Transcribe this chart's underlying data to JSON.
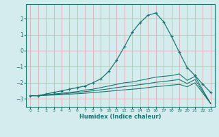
{
  "xlabel": "Humidex (Indice chaleur)",
  "bg_color": "#d5ecee",
  "grid_color": "#dbb0b0",
  "line_color": "#1a7570",
  "xlim": [
    -0.5,
    23.5
  ],
  "ylim": [
    -3.5,
    2.9
  ],
  "yticks": [
    -3,
    -2,
    -1,
    0,
    1,
    2
  ],
  "xticks": [
    0,
    1,
    2,
    3,
    4,
    5,
    6,
    7,
    8,
    9,
    10,
    11,
    12,
    13,
    14,
    15,
    16,
    17,
    18,
    19,
    20,
    21,
    22,
    23
  ],
  "line1_x": [
    0,
    1,
    2,
    3,
    4,
    5,
    6,
    7,
    8,
    9,
    10,
    11,
    12,
    13,
    14,
    15,
    16,
    17,
    18,
    19,
    20,
    21,
    22,
    23
  ],
  "line1_y": [
    -2.8,
    -2.8,
    -2.7,
    -2.6,
    -2.5,
    -2.4,
    -2.3,
    -2.2,
    -2.0,
    -1.75,
    -1.3,
    -0.6,
    0.25,
    1.15,
    1.75,
    2.2,
    2.35,
    1.8,
    0.9,
    -0.1,
    -1.05,
    -1.55,
    -2.1,
    -2.6
  ],
  "line2_x": [
    0,
    1,
    2,
    3,
    4,
    5,
    6,
    7,
    8,
    9,
    10,
    11,
    12,
    13,
    14,
    15,
    16,
    17,
    18,
    19,
    20,
    21,
    22,
    23
  ],
  "line2_y": [
    -2.8,
    -2.8,
    -2.75,
    -2.7,
    -2.65,
    -2.6,
    -2.55,
    -2.45,
    -2.4,
    -2.3,
    -2.2,
    -2.1,
    -2.0,
    -1.95,
    -1.85,
    -1.75,
    -1.65,
    -1.6,
    -1.55,
    -1.45,
    -1.85,
    -1.6,
    -2.45,
    -3.3
  ],
  "line3_x": [
    0,
    1,
    2,
    3,
    4,
    5,
    6,
    7,
    8,
    9,
    10,
    11,
    12,
    13,
    14,
    15,
    16,
    17,
    18,
    19,
    20,
    21,
    22,
    23
  ],
  "line3_y": [
    -2.8,
    -2.8,
    -2.77,
    -2.73,
    -2.7,
    -2.65,
    -2.6,
    -2.55,
    -2.5,
    -2.44,
    -2.38,
    -2.3,
    -2.24,
    -2.18,
    -2.12,
    -2.05,
    -1.97,
    -1.92,
    -1.86,
    -1.8,
    -2.05,
    -1.8,
    -2.55,
    -3.3
  ],
  "line4_x": [
    0,
    1,
    2,
    3,
    4,
    5,
    6,
    7,
    8,
    9,
    10,
    11,
    12,
    13,
    14,
    15,
    16,
    17,
    18,
    19,
    20,
    21,
    22,
    23
  ],
  "line4_y": [
    -2.8,
    -2.8,
    -2.78,
    -2.76,
    -2.74,
    -2.71,
    -2.68,
    -2.65,
    -2.61,
    -2.57,
    -2.53,
    -2.48,
    -2.44,
    -2.4,
    -2.36,
    -2.3,
    -2.24,
    -2.2,
    -2.15,
    -2.1,
    -2.25,
    -2.0,
    -2.65,
    -3.3
  ]
}
